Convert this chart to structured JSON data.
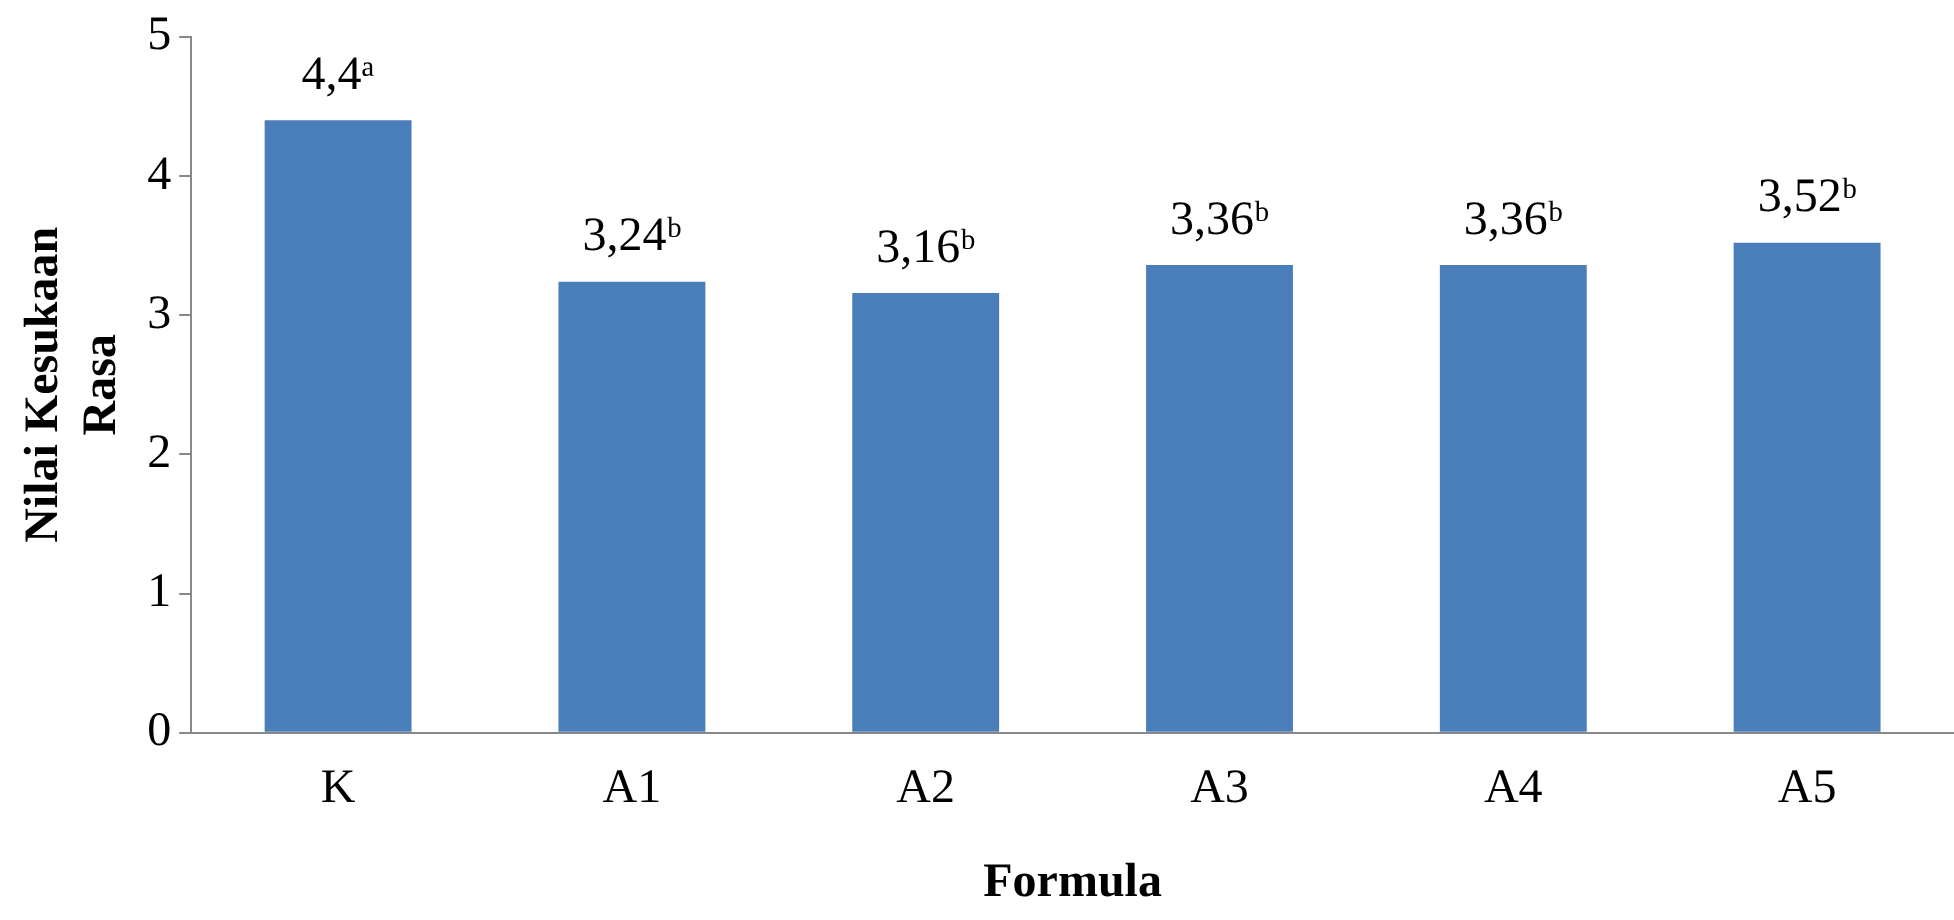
{
  "chart_data": {
    "type": "bar",
    "xlabel": "Formula",
    "ylabel": "Nilai Kesukaan Rasa",
    "categories": [
      "K",
      "A1",
      "A2",
      "A3",
      "A4",
      "A5"
    ],
    "values": [
      4.4,
      3.24,
      3.16,
      3.36,
      3.36,
      3.52
    ],
    "value_labels": [
      "4,4ᵃ",
      "3,24ᵇ",
      "3,16ᵇ",
      "3,36ᵇ",
      "3,36ᵇ",
      "3,52ᵇ"
    ],
    "color": "#4a7ebb",
    "ylim": [
      0,
      5
    ],
    "yticks": [
      0,
      1,
      2,
      3,
      4,
      5
    ],
    "grid": false,
    "legend": false
  }
}
